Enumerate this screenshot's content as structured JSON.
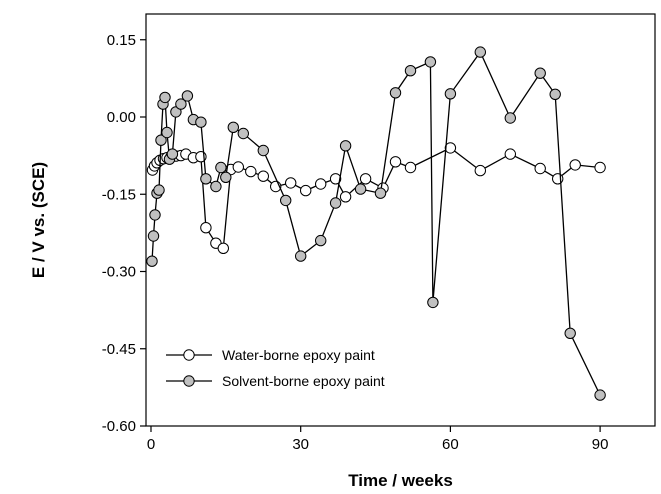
{
  "chart_data": {
    "type": "line",
    "xlabel": "Time / weeks",
    "ylabel": "E / V vs. (SCE)",
    "xlim": [
      -1,
      101
    ],
    "ylim": [
      -0.6,
      0.2
    ],
    "xticks": [
      0,
      30,
      60,
      90
    ],
    "xtick_labels": [
      "0",
      "30",
      "60",
      "90"
    ],
    "yticks": [
      -0.6,
      -0.45,
      -0.3,
      -0.15,
      0.0,
      0.15
    ],
    "ytick_labels": [
      "-0.60",
      "-0.45",
      "-0.30",
      "-0.15",
      "0.00",
      "0.15"
    ],
    "grid": false,
    "legend": "bottom-left",
    "series": [
      {
        "name": "Water-borne epoxy paint",
        "marker_color": "#ffffff",
        "points": [
          [
            0.3,
            -0.103
          ],
          [
            0.7,
            -0.095
          ],
          [
            1.2,
            -0.089
          ],
          [
            1.8,
            -0.084
          ],
          [
            2.5,
            -0.081
          ],
          [
            3.2,
            -0.079
          ],
          [
            4,
            -0.077
          ],
          [
            5,
            -0.076
          ],
          [
            6,
            -0.075
          ],
          [
            7,
            -0.072
          ],
          [
            8.5,
            -0.079
          ],
          [
            10,
            -0.077
          ],
          [
            11,
            -0.215
          ],
          [
            13,
            -0.245
          ],
          [
            14.5,
            -0.255
          ],
          [
            16,
            -0.102
          ],
          [
            17.5,
            -0.097
          ],
          [
            20,
            -0.106
          ],
          [
            22.5,
            -0.115
          ],
          [
            25,
            -0.135
          ],
          [
            28,
            -0.128
          ],
          [
            31,
            -0.143
          ],
          [
            34,
            -0.13
          ],
          [
            37,
            -0.12
          ],
          [
            39,
            -0.155
          ],
          [
            43,
            -0.12
          ],
          [
            46.5,
            -0.138
          ],
          [
            49,
            -0.087
          ],
          [
            52,
            -0.098
          ],
          [
            60,
            -0.06
          ],
          [
            66,
            -0.104
          ],
          [
            72,
            -0.072
          ],
          [
            78,
            -0.1
          ],
          [
            81.5,
            -0.12
          ],
          [
            85,
            -0.093
          ],
          [
            90,
            -0.098
          ]
        ]
      },
      {
        "name": "Solvent-borne epoxy paint",
        "marker_color": "#c0c0c0",
        "points": [
          [
            0.2,
            -0.28
          ],
          [
            0.5,
            -0.231
          ],
          [
            0.8,
            -0.19
          ],
          [
            1.2,
            -0.148
          ],
          [
            1.6,
            -0.142
          ],
          [
            2,
            -0.045
          ],
          [
            2.4,
            0.025
          ],
          [
            2.8,
            0.038
          ],
          [
            3.2,
            -0.03
          ],
          [
            3.7,
            -0.082
          ],
          [
            4.3,
            -0.072
          ],
          [
            5,
            0.01
          ],
          [
            6,
            0.025
          ],
          [
            7.3,
            0.041
          ],
          [
            8.5,
            -0.005
          ],
          [
            10,
            -0.01
          ],
          [
            11,
            -0.12
          ],
          [
            13,
            -0.135
          ],
          [
            14,
            -0.098
          ],
          [
            15,
            -0.117
          ],
          [
            16.5,
            -0.02
          ],
          [
            18.5,
            -0.032
          ],
          [
            22.5,
            -0.065
          ],
          [
            27,
            -0.162
          ],
          [
            30,
            -0.27
          ],
          [
            34,
            -0.24
          ],
          [
            37,
            -0.167
          ],
          [
            39,
            -0.056
          ],
          [
            42,
            -0.14
          ],
          [
            46,
            -0.148
          ],
          [
            49,
            0.047
          ],
          [
            52,
            0.09
          ],
          [
            56,
            0.107
          ],
          [
            56.5,
            -0.36
          ],
          [
            60,
            0.045
          ],
          [
            66,
            0.126
          ],
          [
            72,
            -0.002
          ],
          [
            78,
            0.085
          ],
          [
            81,
            0.044
          ],
          [
            84,
            -0.42
          ],
          [
            90,
            -0.54
          ]
        ]
      }
    ]
  }
}
